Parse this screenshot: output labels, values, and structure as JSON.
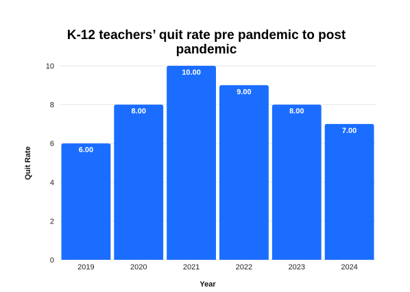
{
  "chart_data": {
    "type": "bar",
    "title": "K-12 teachers’ quit rate pre pandemic to post pandemic",
    "title_lines": [
      "K-12 teachers’ quit rate pre pandemic to post",
      "pandemic"
    ],
    "xlabel": "Year",
    "ylabel": "Quit Rate",
    "categories": [
      "2019",
      "2020",
      "2021",
      "2022",
      "2023",
      "2024"
    ],
    "values": [
      6,
      8,
      10,
      9,
      8,
      7
    ],
    "data_labels": [
      "6.00",
      "8.00",
      "10.00",
      "9.00",
      "8.00",
      "7.00"
    ],
    "ylim": [
      0,
      10
    ],
    "yticks": [
      "0",
      "2",
      "4",
      "6",
      "8",
      "10"
    ],
    "grid": true,
    "legend": "none",
    "bar_color": "#1a6dff",
    "grid_color": "#e6e6e6"
  }
}
